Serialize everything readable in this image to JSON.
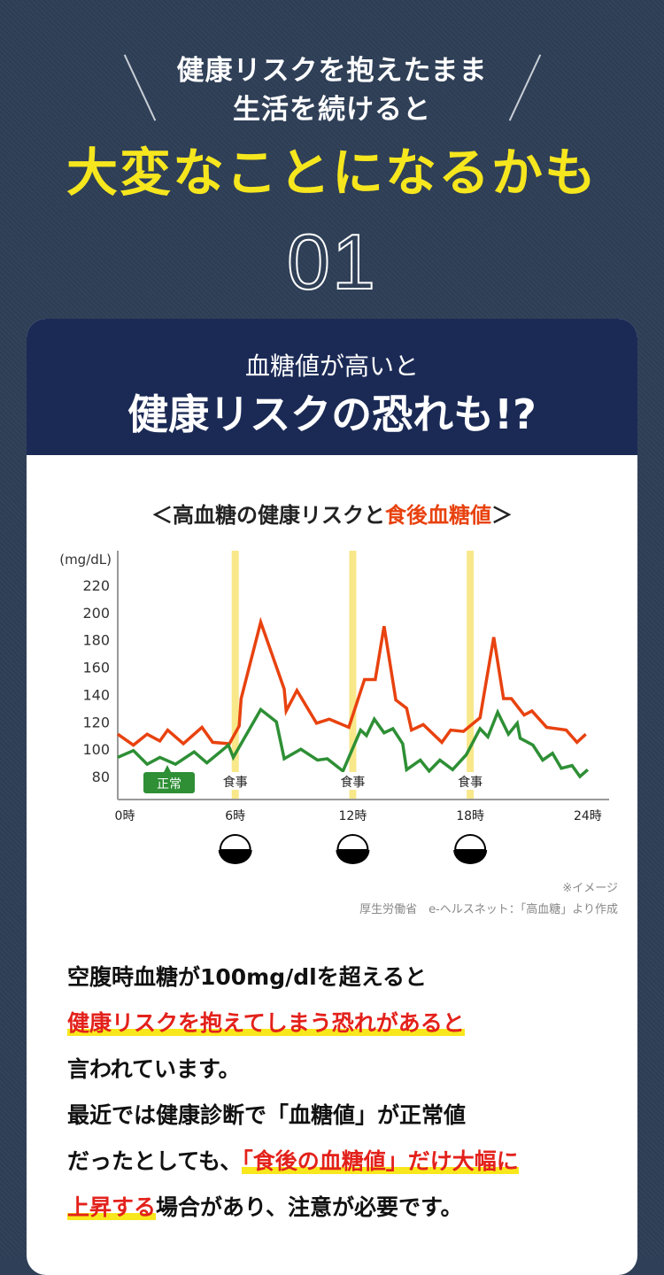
{
  "hero": {
    "line1": "健康リスクを抱えたまま",
    "line2": "生活を続けると",
    "headline": "大変なことになるかも",
    "number": "01"
  },
  "card": {
    "sub": "血糖値が高いと",
    "title": "健康リスクの恐れも!?",
    "chart_title": {
      "open": "＜",
      "main": "高血糖の健康リスクと",
      "accent": "食後血糖値",
      "close": "＞"
    },
    "note": "※イメージ",
    "source": "厚生労働省　e-ヘルスネット：「高血糖」より作成"
  },
  "chart_data": {
    "type": "line",
    "ylabel": "(mg/dL)",
    "yticks": [
      220,
      200,
      180,
      160,
      140,
      120,
      100,
      80
    ],
    "ylim": [
      62,
      240
    ],
    "xlim": [
      0,
      24
    ],
    "xticks": [
      {
        "v": 0,
        "label": "0時"
      },
      {
        "v": 6,
        "label": "6時"
      },
      {
        "v": 12,
        "label": "12時"
      },
      {
        "v": 18,
        "label": "18時"
      },
      {
        "v": 24,
        "label": "24時"
      }
    ],
    "meals": [
      {
        "x": 6,
        "label": "食事"
      },
      {
        "x": 12,
        "label": "食事"
      },
      {
        "x": 18,
        "label": "食事"
      }
    ],
    "colors": {
      "high": "#e8420f",
      "normal": "#2e8f35",
      "meal": "#f8e88a"
    },
    "series": [
      {
        "key": "high",
        "points": [
          [
            0,
            111
          ],
          [
            0.8,
            103
          ],
          [
            1.5,
            111
          ],
          [
            2.15,
            106
          ],
          [
            2.55,
            114
          ],
          [
            3.35,
            104
          ],
          [
            4.3,
            116
          ],
          [
            4.85,
            105
          ],
          [
            5.7,
            104
          ],
          [
            6.2,
            117
          ],
          [
            6.3,
            137
          ],
          [
            7.3,
            193
          ],
          [
            8.5,
            144
          ],
          [
            8.6,
            128
          ],
          [
            9.15,
            143
          ],
          [
            10.15,
            119
          ],
          [
            10.8,
            122
          ],
          [
            11.8,
            116
          ],
          [
            12.6,
            151
          ],
          [
            13.15,
            151
          ],
          [
            13.6,
            190
          ],
          [
            14.2,
            136
          ],
          [
            14.75,
            130
          ],
          [
            15,
            114
          ],
          [
            15.6,
            118
          ],
          [
            16.55,
            105
          ],
          [
            17,
            114
          ],
          [
            17.65,
            113
          ],
          [
            18.5,
            123
          ],
          [
            19.2,
            182
          ],
          [
            19.7,
            137
          ],
          [
            20.1,
            137
          ],
          [
            20.75,
            125
          ],
          [
            21.15,
            128
          ],
          [
            21.9,
            116
          ],
          [
            22.9,
            114
          ],
          [
            23.45,
            105
          ],
          [
            23.9,
            111
          ]
        ]
      },
      {
        "key": "normal",
        "name": "正常",
        "points": [
          [
            0,
            94
          ],
          [
            0.8,
            99
          ],
          [
            1.5,
            89
          ],
          [
            2.15,
            94
          ],
          [
            2.95,
            89
          ],
          [
            3.9,
            98
          ],
          [
            4.55,
            90
          ],
          [
            5.65,
            103
          ],
          [
            5.9,
            94
          ],
          [
            7.3,
            129
          ],
          [
            8.1,
            120
          ],
          [
            8.5,
            93
          ],
          [
            9.35,
            100
          ],
          [
            10.2,
            92
          ],
          [
            10.7,
            93
          ],
          [
            11.5,
            84
          ],
          [
            12.4,
            114
          ],
          [
            12.7,
            110
          ],
          [
            13.1,
            122
          ],
          [
            13.6,
            112
          ],
          [
            14.05,
            115
          ],
          [
            14.55,
            104
          ],
          [
            14.75,
            85
          ],
          [
            15.45,
            92
          ],
          [
            15.9,
            84
          ],
          [
            16.45,
            92
          ],
          [
            17.1,
            85
          ],
          [
            17.8,
            96
          ],
          [
            18.5,
            115
          ],
          [
            18.9,
            109
          ],
          [
            19.4,
            127
          ],
          [
            19.95,
            111
          ],
          [
            20.4,
            119
          ],
          [
            20.55,
            108
          ],
          [
            21.2,
            103
          ],
          [
            21.7,
            92
          ],
          [
            22.2,
            97
          ],
          [
            22.65,
            86
          ],
          [
            23.2,
            88
          ],
          [
            23.6,
            80
          ],
          [
            24,
            85
          ]
        ]
      }
    ],
    "legend_label": "正常"
  },
  "body": {
    "l1": "空腹時血糖が100mg/dlを超えると",
    "l2": "健康リスクを抱えてしまう恐れがあると",
    "l3": "言われています。",
    "l4": "最近では健康診断で「血糖値」が正常値",
    "l5a": "だったとしても、",
    "l5b": "「食後の血糖値」だけ大幅に",
    "l6a": "上昇する",
    "l6b": "場合があり、注意が必要です。"
  }
}
